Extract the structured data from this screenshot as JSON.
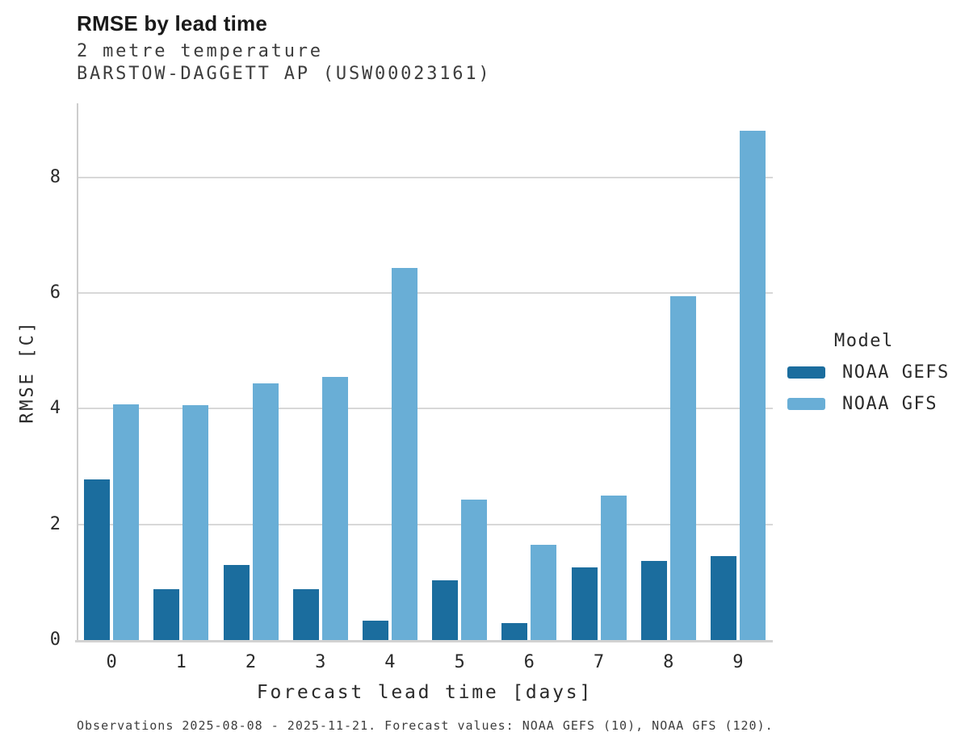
{
  "header": {
    "title": "RMSE by lead time",
    "subtitle1": "2 metre temperature",
    "subtitle2": "BARSTOW-DAGGETT AP (USW00023161)"
  },
  "legend": {
    "title": "Model"
  },
  "footer": {
    "caption": "Observations 2025-08-08 - 2025-11-21. Forecast values: NOAA GEFS (10), NOAA GFS (120)."
  },
  "colors": {
    "gefs": "#1b6d9e",
    "gfs": "#69aed6",
    "gridline": "#d8d8d8"
  },
  "chart_data": {
    "type": "bar",
    "title": "RMSE by lead time",
    "subtitle": [
      "2 metre temperature",
      "BARSTOW-DAGGETT AP (USW00023161)"
    ],
    "categories": [
      "0",
      "1",
      "2",
      "3",
      "4",
      "5",
      "6",
      "7",
      "8",
      "9"
    ],
    "series": [
      {
        "name": "NOAA GEFS",
        "color": "#1b6d9e",
        "values": [
          2.78,
          0.88,
          1.3,
          0.88,
          0.34,
          1.03,
          0.3,
          1.26,
          1.37,
          1.45
        ]
      },
      {
        "name": "NOAA GFS",
        "color": "#69aed6",
        "values": [
          4.07,
          4.06,
          4.44,
          4.55,
          6.44,
          2.43,
          1.65,
          2.5,
          5.94,
          8.8
        ]
      }
    ],
    "xlabel": "Forecast lead time [days]",
    "ylabel": "RMSE [C]",
    "yticks": [
      0,
      2,
      4,
      6,
      8
    ],
    "ylim": [
      0,
      9.28
    ],
    "grid": true,
    "legend_title": "Model",
    "legend_position": "right-outside"
  }
}
